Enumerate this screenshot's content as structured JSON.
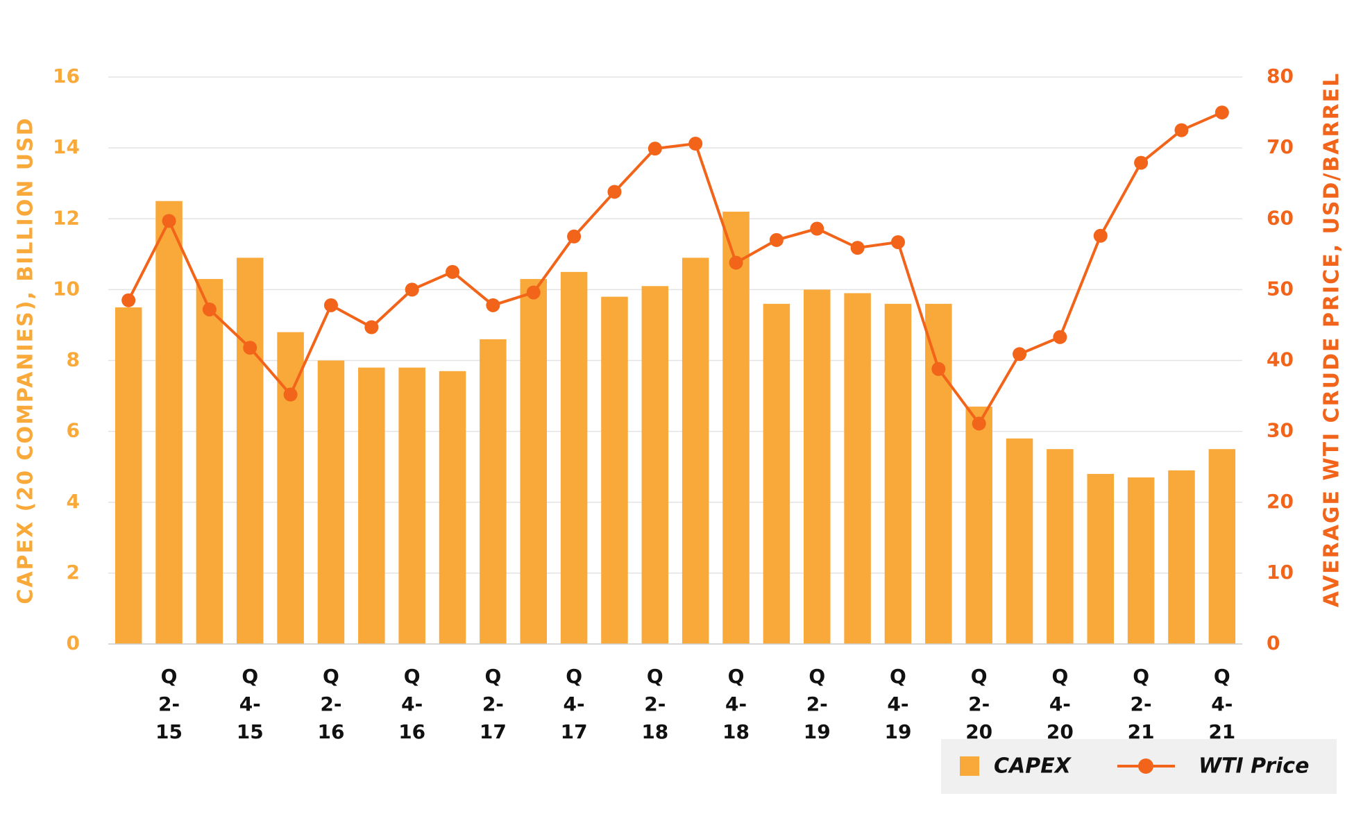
{
  "chart_data": {
    "type": "bar",
    "categories": [
      null,
      "Q2-15",
      null,
      "Q4-15",
      null,
      "Q2-16",
      null,
      "Q4-16",
      null,
      "Q2-17",
      null,
      "Q4-17",
      null,
      "Q2-18",
      null,
      "Q4-18",
      null,
      "Q2-19",
      null,
      "Q4-19",
      null,
      "Q2-20",
      null,
      "Q4-20",
      null,
      "Q2-21",
      null,
      "Q4-21"
    ],
    "series": [
      {
        "name": "CAPEX",
        "type": "bar",
        "color": "#F9A93A",
        "values": [
          9.5,
          12.5,
          10.3,
          10.9,
          8.8,
          8.0,
          7.8,
          7.8,
          7.7,
          8.6,
          10.3,
          10.5,
          9.8,
          10.1,
          10.9,
          12.2,
          9.6,
          10.0,
          9.9,
          9.6,
          9.6,
          6.7,
          5.8,
          5.5,
          4.8,
          4.7,
          4.9,
          5.5
        ]
      },
      {
        "name": "WTI Price",
        "type": "line",
        "axis": "y2",
        "color": "#F26419",
        "values": [
          48.5,
          59.7,
          47.2,
          41.8,
          35.2,
          47.8,
          44.7,
          50.0,
          52.5,
          47.8,
          49.6,
          57.5,
          63.8,
          69.9,
          70.6,
          53.8,
          57.0,
          58.6,
          55.9,
          56.7,
          38.8,
          31.1,
          40.9,
          43.3,
          57.6,
          67.9,
          72.5,
          75.0
        ]
      }
    ],
    "ylabel": "CAPEX (20 COMPANIES), BILLION USD",
    "y2label": "AVERAGE WTI CRUDE PRICE, USD/BARREL",
    "ylim": [
      0,
      16
    ],
    "yticks": [
      0,
      2,
      4,
      6,
      8,
      10,
      12,
      14,
      16
    ],
    "y2lim": [
      0,
      80
    ],
    "y2ticks": [
      0,
      10,
      20,
      30,
      40,
      50,
      60,
      70,
      80
    ],
    "grid": true,
    "legend": "bottom-right"
  }
}
